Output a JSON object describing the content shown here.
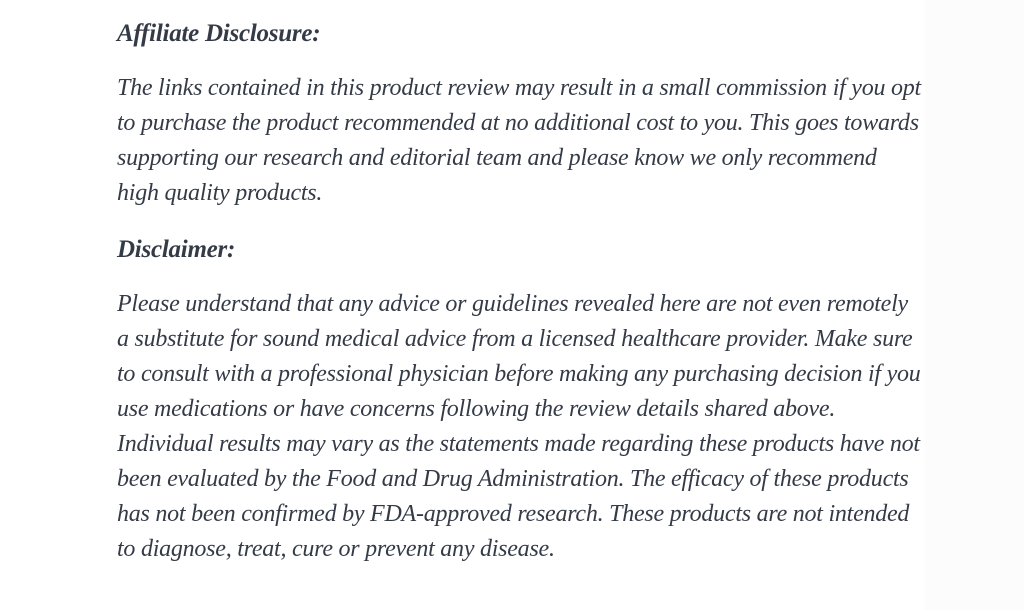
{
  "page": {
    "background_color": "#fcfcfc",
    "content_background_color": "#ffffff",
    "text_color": "#343b47"
  },
  "article": {
    "sections": [
      {
        "heading": "Affiliate Disclosure:",
        "body": "The links contained in this product review may result in a small commission if you opt to purchase the product recommended at no additional cost to you. This goes towards supporting our research and editorial team and please know we only recommend high quality products."
      },
      {
        "heading": "Disclaimer:",
        "body": "Please understand that any advice or guidelines revealed here are not even remotely a substitute for sound medical advice from a licensed healthcare provider. Make sure to consult with a professional physician before making any purchasing decision if you use medications or have concerns following the review details shared above. Individual results may vary as the statements made regarding these products have not been evaluated by the Food and Drug Administration. The efficacy of these products has not been confirmed by FDA-approved research. These products are not intended to diagnose, treat, cure or prevent any disease."
      }
    ]
  }
}
